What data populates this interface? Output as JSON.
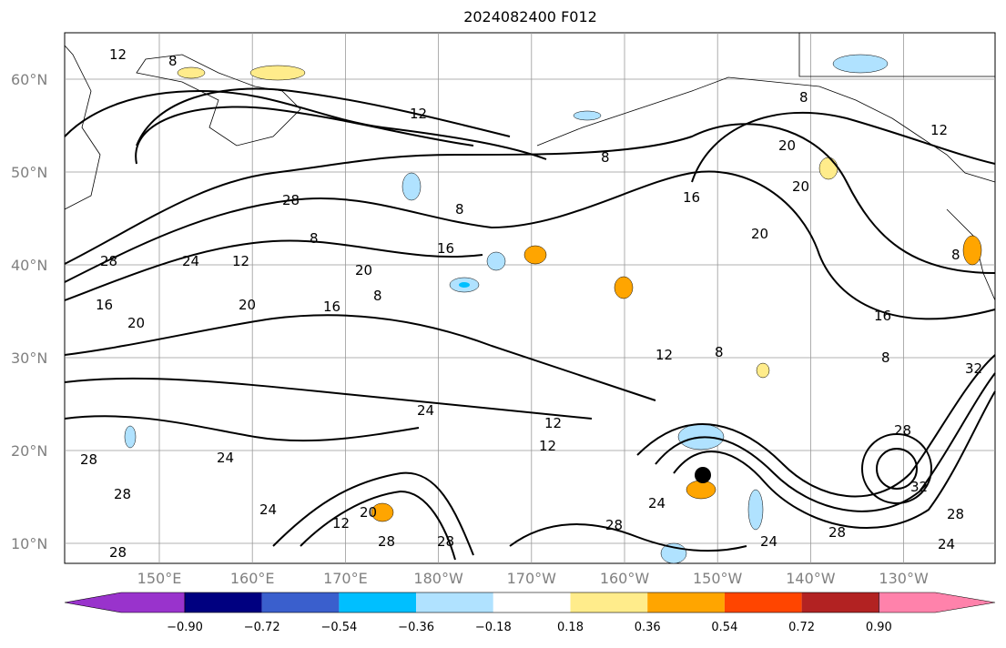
{
  "title": "2024082400 F012",
  "lat_labels": [
    "60°N",
    "50°N",
    "40°N",
    "30°N",
    "20°N",
    "10°N"
  ],
  "lon_labels": [
    "150°E",
    "160°E",
    "170°E",
    "180°W",
    "170°W",
    "160°W",
    "150°W",
    "140°W",
    "130°W"
  ],
  "colorbar": {
    "ticks": [
      "−0.90",
      "−0.72",
      "−0.54",
      "−0.36",
      "−0.18",
      "0.18",
      "0.36",
      "0.54",
      "0.72",
      "0.90"
    ],
    "colors": [
      "#9933cc",
      "#000080",
      "#3a5fcd",
      "#00bfff",
      "#b0e2ff",
      "#ffffff",
      "#ffec8b",
      "#ffa500",
      "#ff4500",
      "#b22222",
      "#ff82ab"
    ]
  },
  "contour_labels": [
    "12",
    "8",
    "12",
    "8",
    "20",
    "20",
    "16",
    "20",
    "28",
    "8",
    "8",
    "16",
    "20",
    "28",
    "24",
    "12",
    "20",
    "16",
    "20",
    "16",
    "8",
    "12",
    "8",
    "24",
    "12",
    "12",
    "28",
    "24",
    "28",
    "24",
    "12",
    "20",
    "28",
    "28",
    "24",
    "28",
    "24",
    "28",
    "32",
    "28",
    "24",
    "28",
    "32",
    "16",
    "8",
    "8",
    "8",
    "12",
    "28"
  ]
}
